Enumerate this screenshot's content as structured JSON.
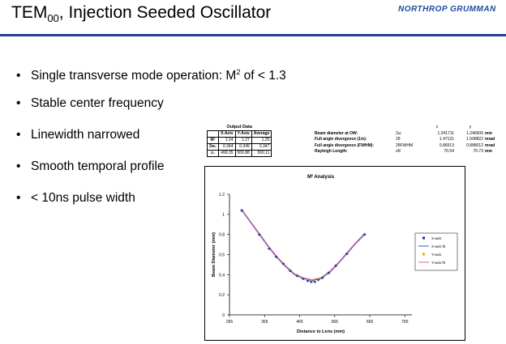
{
  "slide": {
    "title_main": "TEM",
    "title_sub": "00",
    "title_rest": ", Injection Seeded Oscillator",
    "logo": "NORTHROP GRUMMAN",
    "colors": {
      "rule": "#1f3f8f",
      "logo": "#1f4b9e"
    }
  },
  "bullets": [
    {
      "pre": "Single transverse mode operation: M",
      "sup": "2",
      "post": " of < 1.3"
    },
    {
      "pre": "Stable center frequency",
      "sup": "",
      "post": ""
    },
    {
      "pre": "Linewidth narrowed",
      "sup": "",
      "post": ""
    },
    {
      "pre": "Smooth temporal profile",
      "sup": "",
      "post": ""
    },
    {
      "pre": "< 10ns pulse width",
      "sup": "",
      "post": ""
    }
  ],
  "output_table": {
    "caption": "Output Data",
    "headers": [
      "",
      "X-Axis",
      "Y-Axis",
      "Average"
    ],
    "rows": [
      {
        "label": "M²",
        "x": "1.24",
        "y": "1.27",
        "avg": "1.25"
      },
      {
        "label": "2w₀",
        "x": "0.344",
        "y": "0.349",
        "avg": "0.347"
      },
      {
        "label": "z₀",
        "x": "499.35",
        "y": "500.88",
        "avg": "500.11"
      }
    ]
  },
  "results_table": {
    "col_x": "x",
    "col_y": "y",
    "rows": [
      {
        "label": "Beam diameter at OW:",
        "sym": "2ω",
        "x": "1.241711",
        "y": "1.246506",
        "unit": "mm"
      },
      {
        "label": "Full angle divergence (1/e):",
        "sym": "2θ",
        "x": "1.47131",
        "y": "1.508822",
        "unit": "mrad"
      },
      {
        "label": "Full angle divergence (FWHM):",
        "sym": "2θFWHM",
        "x": "0.86513",
        "y": "0.888012",
        "unit": "mrad"
      },
      {
        "label": "Rayleigh Length:",
        "sym": "zR",
        "x": "70.54",
        "y": "70.73",
        "unit": "mm"
      }
    ]
  },
  "chart_data": {
    "type": "scatter",
    "title": "M² Analysis",
    "xlabel": "Distance to Lens (mm)",
    "ylabel": "Beam Diameter (mm)",
    "xlim": [
      265,
      785
    ],
    "ylim": [
      0,
      1.2
    ],
    "xticks": [
      265,
      365,
      465,
      565,
      665,
      765
    ],
    "yticks": [
      0,
      0.2,
      0.4,
      0.6,
      0.8,
      1,
      1.2
    ],
    "legend_position": "right",
    "series": [
      {
        "name": "X-axis",
        "kind": "points",
        "color": "#1f2f8f",
        "x": [
          300,
          350,
          378,
          398,
          418,
          438,
          458,
          475,
          488,
          498,
          508,
          518,
          530,
          548,
          568,
          600,
          650
        ],
        "y": [
          1.04,
          0.8,
          0.66,
          0.58,
          0.51,
          0.44,
          0.39,
          0.36,
          0.34,
          0.33,
          0.33,
          0.35,
          0.37,
          0.42,
          0.49,
          0.61,
          0.8
        ]
      },
      {
        "name": "X-axis fit",
        "kind": "line",
        "color": "#3f55c8",
        "x": [
          300,
          325,
          350,
          375,
          400,
          425,
          450,
          475,
          500,
          525,
          550,
          575,
          600,
          625,
          650
        ],
        "y": [
          1.04,
          0.92,
          0.8,
          0.68,
          0.57,
          0.48,
          0.4,
          0.36,
          0.34,
          0.36,
          0.42,
          0.51,
          0.61,
          0.71,
          0.8
        ]
      },
      {
        "name": "Y-axis",
        "kind": "points",
        "color": "#e8a020",
        "x": [
          300,
          350,
          378,
          398,
          418,
          438,
          458,
          475,
          488,
          498,
          508,
          518,
          530,
          548,
          568,
          600,
          650
        ],
        "y": [
          1.05,
          0.81,
          0.67,
          0.59,
          0.52,
          0.45,
          0.4,
          0.37,
          0.35,
          0.34,
          0.34,
          0.36,
          0.38,
          0.43,
          0.5,
          0.62,
          0.81
        ]
      },
      {
        "name": "Y-axis fit",
        "kind": "line",
        "color": "#e06090",
        "x": [
          300,
          325,
          350,
          375,
          400,
          425,
          450,
          475,
          500,
          525,
          550,
          575,
          600,
          625,
          650
        ],
        "y": [
          1.05,
          0.93,
          0.81,
          0.69,
          0.58,
          0.49,
          0.41,
          0.37,
          0.35,
          0.37,
          0.43,
          0.52,
          0.62,
          0.72,
          0.81
        ]
      }
    ]
  }
}
